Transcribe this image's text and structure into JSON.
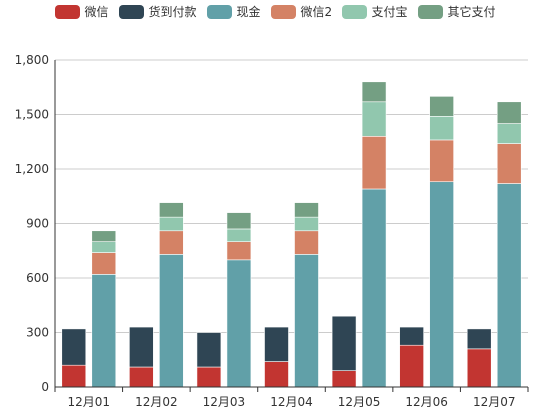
{
  "chart_data": {
    "type": "bar",
    "stacked": true,
    "categories": [
      "12月01",
      "12月02",
      "12月03",
      "12月04",
      "12月05",
      "12月06",
      "12月07"
    ],
    "ylim": [
      0,
      1800
    ],
    "yticks": [
      0,
      300,
      600,
      900,
      1200,
      1500,
      1800
    ],
    "ytick_labels": [
      "0",
      "300",
      "600",
      "900",
      "1,200",
      "1,500",
      "1,800"
    ],
    "grid": true,
    "legend_position": "top",
    "series": [
      {
        "name": "微信",
        "stack": "A",
        "color": "#c23531",
        "values": [
          120,
          110,
          110,
          140,
          90,
          230,
          210
        ]
      },
      {
        "name": "货到付款",
        "stack": "A",
        "color": "#2f4554",
        "values": [
          200,
          220,
          190,
          190,
          300,
          100,
          110
        ]
      },
      {
        "name": "现金",
        "stack": "B",
        "color": "#61a0a8",
        "values": [
          620,
          730,
          700,
          730,
          1090,
          1130,
          1120
        ]
      },
      {
        "name": "微信2",
        "stack": "B",
        "color": "#d48265",
        "values": [
          120,
          130,
          100,
          130,
          290,
          230,
          220
        ]
      },
      {
        "name": "支付宝",
        "stack": "B",
        "color": "#91c7ae",
        "values": [
          60,
          75,
          70,
          75,
          190,
          130,
          110
        ]
      },
      {
        "name": "其它支付",
        "stack": "B",
        "color": "#749f83",
        "values": [
          60,
          80,
          90,
          80,
          110,
          110,
          120
        ]
      }
    ]
  }
}
